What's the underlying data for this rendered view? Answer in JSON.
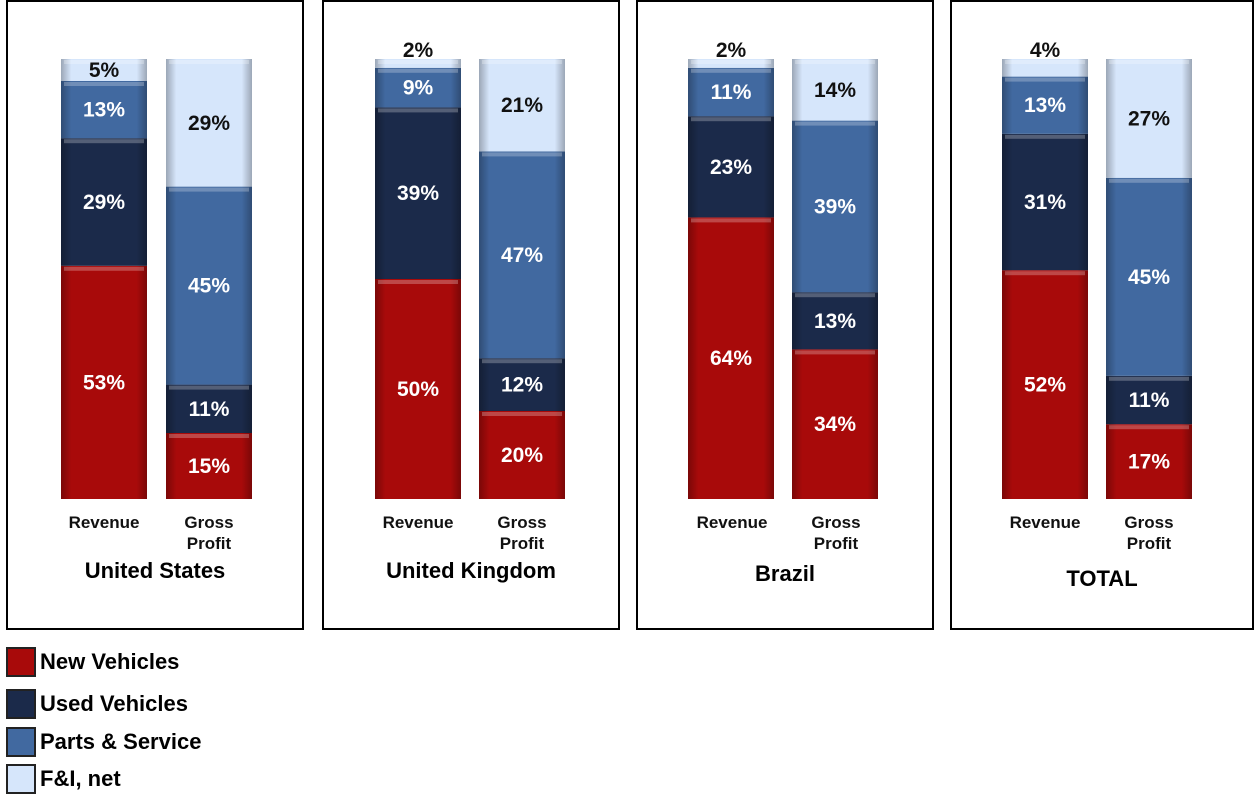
{
  "legend": [
    {
      "label": "New Vehicles",
      "color": "#a80a0a"
    },
    {
      "label": "Used Vehicles",
      "color": "#1b2a4a"
    },
    {
      "label": "Parts & Service",
      "color": "#4169a0"
    },
    {
      "label": "F&I, net",
      "color": "#d6e6fb"
    }
  ],
  "chart_data": [
    {
      "type": "bar",
      "stacked": true,
      "title": "United States",
      "categories": [
        "Revenue",
        "Gross Profit"
      ],
      "series": [
        {
          "name": "New Vehicles",
          "values": [
            53,
            15
          ]
        },
        {
          "name": "Used Vehicles",
          "values": [
            29,
            11
          ]
        },
        {
          "name": "Parts & Service",
          "values": [
            13,
            45
          ]
        },
        {
          "name": "F&I, net",
          "values": [
            5,
            29
          ]
        }
      ],
      "ylim": [
        0,
        100
      ]
    },
    {
      "type": "bar",
      "stacked": true,
      "title": "United Kingdom",
      "categories": [
        "Revenue",
        "Gross Profit"
      ],
      "series": [
        {
          "name": "New Vehicles",
          "values": [
            50,
            20
          ]
        },
        {
          "name": "Used Vehicles",
          "values": [
            39,
            12
          ]
        },
        {
          "name": "Parts & Service",
          "values": [
            9,
            47
          ]
        },
        {
          "name": "F&I, net",
          "values": [
            2,
            21
          ]
        }
      ],
      "ylim": [
        0,
        100
      ]
    },
    {
      "type": "bar",
      "stacked": true,
      "title": "Brazil",
      "categories": [
        "Revenue",
        "Gross Profit"
      ],
      "series": [
        {
          "name": "New Vehicles",
          "values": [
            64,
            34
          ]
        },
        {
          "name": "Used Vehicles",
          "values": [
            23,
            13
          ]
        },
        {
          "name": "Parts & Service",
          "values": [
            11,
            39
          ]
        },
        {
          "name": "F&I, net",
          "values": [
            2,
            14
          ]
        }
      ],
      "ylim": [
        0,
        100
      ]
    },
    {
      "type": "bar",
      "stacked": true,
      "title": "TOTAL",
      "categories": [
        "Revenue",
        "Gross Profit"
      ],
      "series": [
        {
          "name": "New Vehicles",
          "values": [
            52,
            17
          ]
        },
        {
          "name": "Used Vehicles",
          "values": [
            31,
            11
          ]
        },
        {
          "name": "Parts & Service",
          "values": [
            13,
            45
          ]
        },
        {
          "name": "F&I, net",
          "values": [
            4,
            27
          ]
        }
      ],
      "ylim": [
        0,
        100
      ]
    }
  ]
}
